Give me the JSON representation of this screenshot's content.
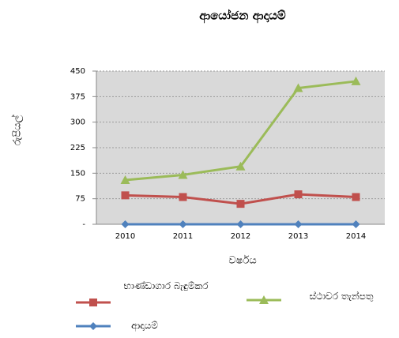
{
  "chart_data": {
    "type": "line",
    "title": "ආයෝජන ආදායම්",
    "y_label": "රුපියල්",
    "x_label": "වර්ෂය",
    "categories": [
      "2010",
      "2011",
      "2012",
      "2013",
      "2014"
    ],
    "series": [
      {
        "name": "භාණ්ඩාගාර බැඳුම්කර",
        "color": "#c0504d",
        "marker": "square",
        "values": [
          85,
          80,
          60,
          88,
          80
        ]
      },
      {
        "name": "ස්ථාවර තැන්පතු",
        "color": "#9bbb59",
        "marker": "triangle",
        "values": [
          130,
          145,
          170,
          400,
          420
        ]
      },
      {
        "name": "ආදායම්",
        "color": "#4f81bd",
        "marker": "diamond",
        "values": [
          0,
          0,
          0,
          0,
          0
        ]
      }
    ],
    "ylim": [
      0,
      450
    ],
    "yticks": [
      {
        "value": 0,
        "label": "-"
      },
      75,
      150,
      225,
      300,
      375,
      450
    ],
    "grid": true,
    "legend": "bottom"
  }
}
